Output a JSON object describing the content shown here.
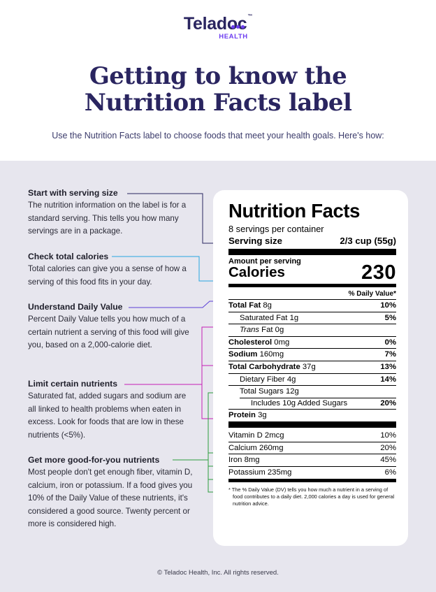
{
  "brand": {
    "name": "Teladoc",
    "sub": "HEALTH",
    "tm": "™"
  },
  "title": {
    "line1": "Getting to know the",
    "line2": "Nutrition Facts label"
  },
  "intro": "Use the Nutrition Facts label to choose foods that meet your health goals. Here's how:",
  "tips": [
    {
      "heading": "Start with serving size",
      "body": "The nutrition information on the label is for a standard serving. This tells you how many servings are in a package."
    },
    {
      "heading": "Check total calories",
      "body": "Total calories can give you a sense of how a serving of this food fits in your day."
    },
    {
      "heading": "Understand Daily Value",
      "body": "Percent Daily Value tells you how much of a certain nutrient a serving of this food will give you, based on a 2,000-calorie diet."
    },
    {
      "heading": "Limit certain nutrients",
      "body": "Saturated fat, added sugars and sodium are all linked to health problems when eaten in excess. Look for foods that are low in these nutrients (<5%)."
    },
    {
      "heading": "Get more good-for-you nutrients",
      "body": "Most people don't get enough fiber, vitamin D, calcium, iron or potassium. If a food gives you 10% of the Daily Value of these nutrients, it's considered a good source. Twenty percent or more is considered high."
    }
  ],
  "label": {
    "title": "Nutrition Facts",
    "servings": "8 servings per container",
    "serving_size_label": "Serving size",
    "serving_size_value": "2/3 cup (55g)",
    "amount_per_serving": "Amount per serving",
    "calories_label": "Calories",
    "calories_value": "230",
    "dv_header": "% Daily Value*",
    "rows": {
      "total_fat": {
        "name": "Total Fat",
        "amount": "8g",
        "dv": "10%"
      },
      "sat_fat": {
        "name": "Saturated Fat",
        "amount": "1g",
        "dv": "5%"
      },
      "trans_fat": {
        "name_italic": "Trans",
        "name": " Fat",
        "amount": "0g"
      },
      "cholesterol": {
        "name": "Cholesterol",
        "amount": "0mg",
        "dv": "0%"
      },
      "sodium": {
        "name": "Sodium",
        "amount": "160mg",
        "dv": "7%"
      },
      "total_carb": {
        "name": "Total Carbohydrate",
        "amount": "37g",
        "dv": "13%"
      },
      "fiber": {
        "name": "Dietary Fiber",
        "amount": "4g",
        "dv": "14%"
      },
      "total_sugars": {
        "name": "Total Sugars",
        "amount": "12g"
      },
      "added_sugars": {
        "name": "Includes 10g Added Sugars",
        "dv": "20%"
      },
      "protein": {
        "name": "Protein",
        "amount": "3g"
      },
      "vitamin_d": {
        "name": "Vitamin D",
        "amount": "2mcg",
        "dv": "10%"
      },
      "calcium": {
        "name": "Calcium",
        "amount": "260mg",
        "dv": "20%"
      },
      "iron": {
        "name": "Iron",
        "amount": "8mg",
        "dv": "45%"
      },
      "potassium": {
        "name": "Potassium",
        "amount": "235mg",
        "dv": "6%"
      }
    },
    "footnote": "* The % Daily Value (DV) tells you how much a nutrient in a serving of food contributes to a daily diet. 2,000 calories a day is used for general nutrition advice."
  },
  "colors": {
    "navy": "#2a2560",
    "purple_brand": "#6d3df0",
    "dot_serving": "#2a2560",
    "dot_calories": "#27a6e0",
    "dot_dv": "#5b3fd6",
    "dot_limit": "#c51fb5",
    "dot_good": "#2e9e3f"
  },
  "footer": "© Teladoc Health, Inc. All rights reserved."
}
